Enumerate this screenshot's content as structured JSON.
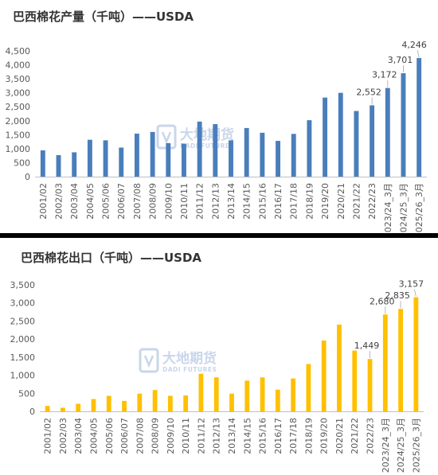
{
  "chart_data": [
    {
      "type": "bar",
      "title": "巴西棉花产量（千吨）——USDA",
      "color": "#4a7ebb",
      "categories": [
        "2001/02",
        "2002/03",
        "2003/04",
        "2004/05",
        "2005/06",
        "2006/07",
        "2007/08",
        "2008/09",
        "2009/10",
        "2010/11",
        "2011/12",
        "2012/13",
        "2013/14",
        "2014/15",
        "2015/16",
        "2016/17",
        "2017/18",
        "2018/19",
        "2019/20",
        "2020/21",
        "2021/22",
        "2022/23",
        "2023/24_3月",
        "2024/25_3月",
        "2025/26_3月"
      ],
      "values": [
        940,
        770,
        870,
        1320,
        1300,
        1040,
        1540,
        1600,
        1200,
        1180,
        1970,
        1880,
        1300,
        1740,
        1570,
        1280,
        1530,
        2020,
        2830,
        3000,
        2350,
        2552,
        3172,
        3701,
        4246
      ],
      "data_labels": [
        "",
        "",
        "",
        "",
        "",
        "",
        "",
        "",
        "",
        "",
        "",
        "",
        "",
        "",
        "",
        "",
        "",
        "",
        "",
        "",
        "",
        "2,552",
        "3,172",
        "3,701",
        "4,246"
      ],
      "y_ticks": [
        "0",
        "500",
        "1,000",
        "1,500",
        "2,000",
        "2,500",
        "3,000",
        "3,500",
        "4,000",
        "4,500"
      ],
      "ylim": [
        0,
        4500
      ],
      "grid": false,
      "legend": "none"
    },
    {
      "type": "bar",
      "title": "巴西棉花出口（千吨）——USDA",
      "color": "#ffc000",
      "categories": [
        "2001/02",
        "2002/03",
        "2003/04",
        "2004/05",
        "2005/06",
        "2006/07",
        "2007/08",
        "2008/09",
        "2009/10",
        "2010/11",
        "2011/12",
        "2012/13",
        "2013/14",
        "2014/15",
        "2015/16",
        "2016/17",
        "2017/18",
        "2018/19",
        "2019/20",
        "2020/21",
        "2021/22",
        "2022/23",
        "2023/24_3月",
        "2024/25_3月",
        "2025/26_3月"
      ],
      "values": [
        150,
        100,
        210,
        340,
        430,
        290,
        490,
        590,
        430,
        440,
        1040,
        940,
        490,
        850,
        940,
        600,
        910,
        1310,
        1960,
        2400,
        1680,
        1449,
        2680,
        2835,
        3157
      ],
      "data_labels": [
        "",
        "",
        "",
        "",
        "",
        "",
        "",
        "",
        "",
        "",
        "",
        "",
        "",
        "",
        "",
        "",
        "",
        "",
        "",
        "",
        "",
        "1,449",
        "2,680",
        "2,835",
        "3,157"
      ],
      "y_ticks": [
        "0",
        "500",
        "1,000",
        "1,500",
        "2,000",
        "2,500",
        "3,000",
        "3,500"
      ],
      "ylim": [
        0,
        3500
      ],
      "grid": false,
      "legend": "none"
    }
  ],
  "watermark": {
    "text_cn": "大地期货",
    "text_en": "DADI FUTURES",
    "color": "#c9d6ea"
  }
}
